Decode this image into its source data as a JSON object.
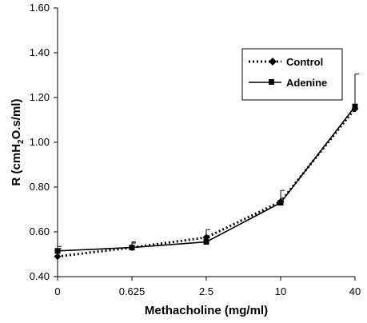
{
  "chart_data": {
    "type": "line",
    "title": "",
    "xlabel": "Methacholine (mg/ml)",
    "ylabel": {
      "prefix": "R (cmH",
      "subscript": "2",
      "suffix": "O.s/ml)"
    },
    "categories": [
      "0",
      "0.625",
      "2.5",
      "10",
      "40"
    ],
    "ylim": [
      0.4,
      1.6
    ],
    "yticks": [
      "0.40",
      "0.60",
      "0.80",
      "1.00",
      "1.20",
      "1.40",
      "1.60"
    ],
    "grid": false,
    "legend_position": "top-right",
    "series": [
      {
        "name": "Control",
        "values": [
          0.49,
          0.53,
          0.575,
          0.735,
          1.15
        ],
        "error_upper": [
          0.035,
          0.025,
          0.035,
          0.05,
          0.0
        ],
        "style": "dotted",
        "marker": "diamond",
        "color": "#000000"
      },
      {
        "name": "Adenine",
        "values": [
          0.515,
          0.53,
          0.555,
          0.73,
          1.16
        ],
        "error_upper": [
          0.02,
          0.02,
          0.02,
          0.02,
          0.145
        ],
        "style": "solid",
        "marker": "square",
        "color": "#000000"
      }
    ]
  }
}
